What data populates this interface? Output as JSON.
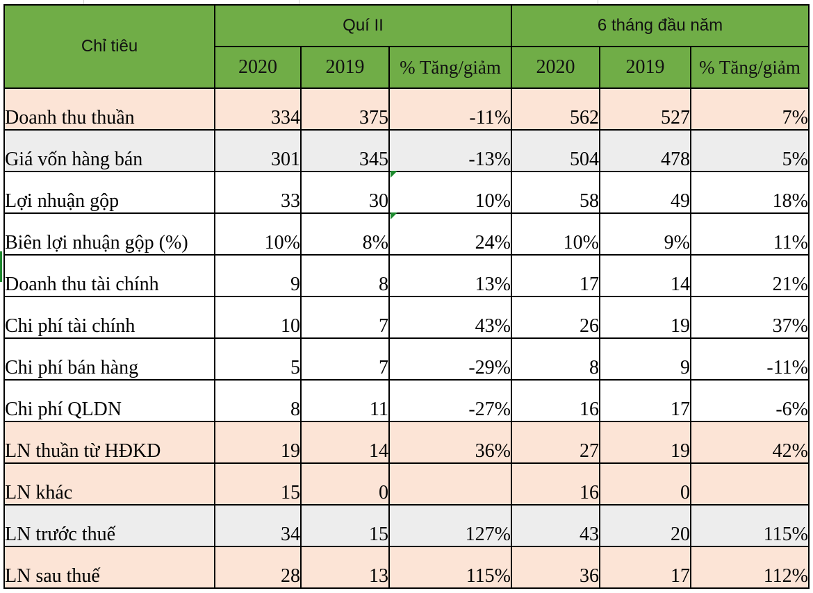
{
  "table": {
    "header": {
      "indicator": "Chỉ tiêu",
      "group_q2": "Quí II",
      "group_h1": "6 tháng đầu năm",
      "q2_cols": [
        "2020",
        "2019",
        "% Tăng/giảm"
      ],
      "h1_cols": [
        "2020",
        "2019",
        "% Tăng/giảm"
      ]
    },
    "rows": [
      {
        "label": "Doanh thu thuần",
        "q2_2020": "334",
        "q2_2019": "375",
        "q2_pct": "-11%",
        "h1_2020": "562",
        "h1_2019": "527",
        "h1_pct": "7%"
      },
      {
        "label": "Giá vốn hàng bán",
        "q2_2020": "301",
        "q2_2019": "345",
        "q2_pct": "-13%",
        "h1_2020": "504",
        "h1_2019": "478",
        "h1_pct": "5%"
      },
      {
        "label": "Lợi nhuận gộp",
        "q2_2020": "33",
        "q2_2019": "30",
        "q2_pct": "10%",
        "h1_2020": "58",
        "h1_2019": "49",
        "h1_pct": "18%"
      },
      {
        "label": "Biên lợi nhuận gộp (%)",
        "q2_2020": "10%",
        "q2_2019": "8%",
        "q2_pct": "24%",
        "h1_2020": "10%",
        "h1_2019": "9%",
        "h1_pct": "11%"
      },
      {
        "label": "Doanh thu tài chính",
        "q2_2020": "9",
        "q2_2019": "8",
        "q2_pct": "13%",
        "h1_2020": "17",
        "h1_2019": "14",
        "h1_pct": "21%"
      },
      {
        "label": "Chi phí tài chính",
        "q2_2020": "10",
        "q2_2019": "7",
        "q2_pct": "43%",
        "h1_2020": "26",
        "h1_2019": "19",
        "h1_pct": "37%"
      },
      {
        "label": "Chi phí bán hàng",
        "q2_2020": "5",
        "q2_2019": "7",
        "q2_pct": "-29%",
        "h1_2020": "8",
        "h1_2019": "9",
        "h1_pct": "-11%"
      },
      {
        "label": "Chi phí QLDN",
        "q2_2020": "8",
        "q2_2019": "11",
        "q2_pct": "-27%",
        "h1_2020": "16",
        "h1_2019": "17",
        "h1_pct": "-6%"
      },
      {
        "label": "LN thuần từ HĐKD",
        "q2_2020": "19",
        "q2_2019": "14",
        "q2_pct": "36%",
        "h1_2020": "27",
        "h1_2019": "19",
        "h1_pct": "42%"
      },
      {
        "label": "LN khác",
        "q2_2020": "15",
        "q2_2019": "0",
        "q2_pct": "",
        "h1_2020": "16",
        "h1_2019": "0",
        "h1_pct": ""
      },
      {
        "label": "LN trước thuế",
        "q2_2020": "34",
        "q2_2019": "15",
        "q2_pct": "127%",
        "h1_2020": "43",
        "h1_2019": "20",
        "h1_pct": "115%"
      },
      {
        "label": "LN sau thuế",
        "q2_2020": "28",
        "q2_2019": "13",
        "q2_pct": "115%",
        "h1_2020": "36",
        "h1_2019": "17",
        "h1_pct": "112%"
      }
    ],
    "row_styles": [
      "pink",
      "grey",
      "white",
      "white",
      "white",
      "white",
      "white",
      "white",
      "pink",
      "pink",
      "grey",
      "pink"
    ],
    "colors": {
      "header_green": "#70ad47",
      "row_pink": "#fce4d6",
      "row_grey": "#ededed",
      "error_marker_green": "#1e8a2e"
    }
  }
}
